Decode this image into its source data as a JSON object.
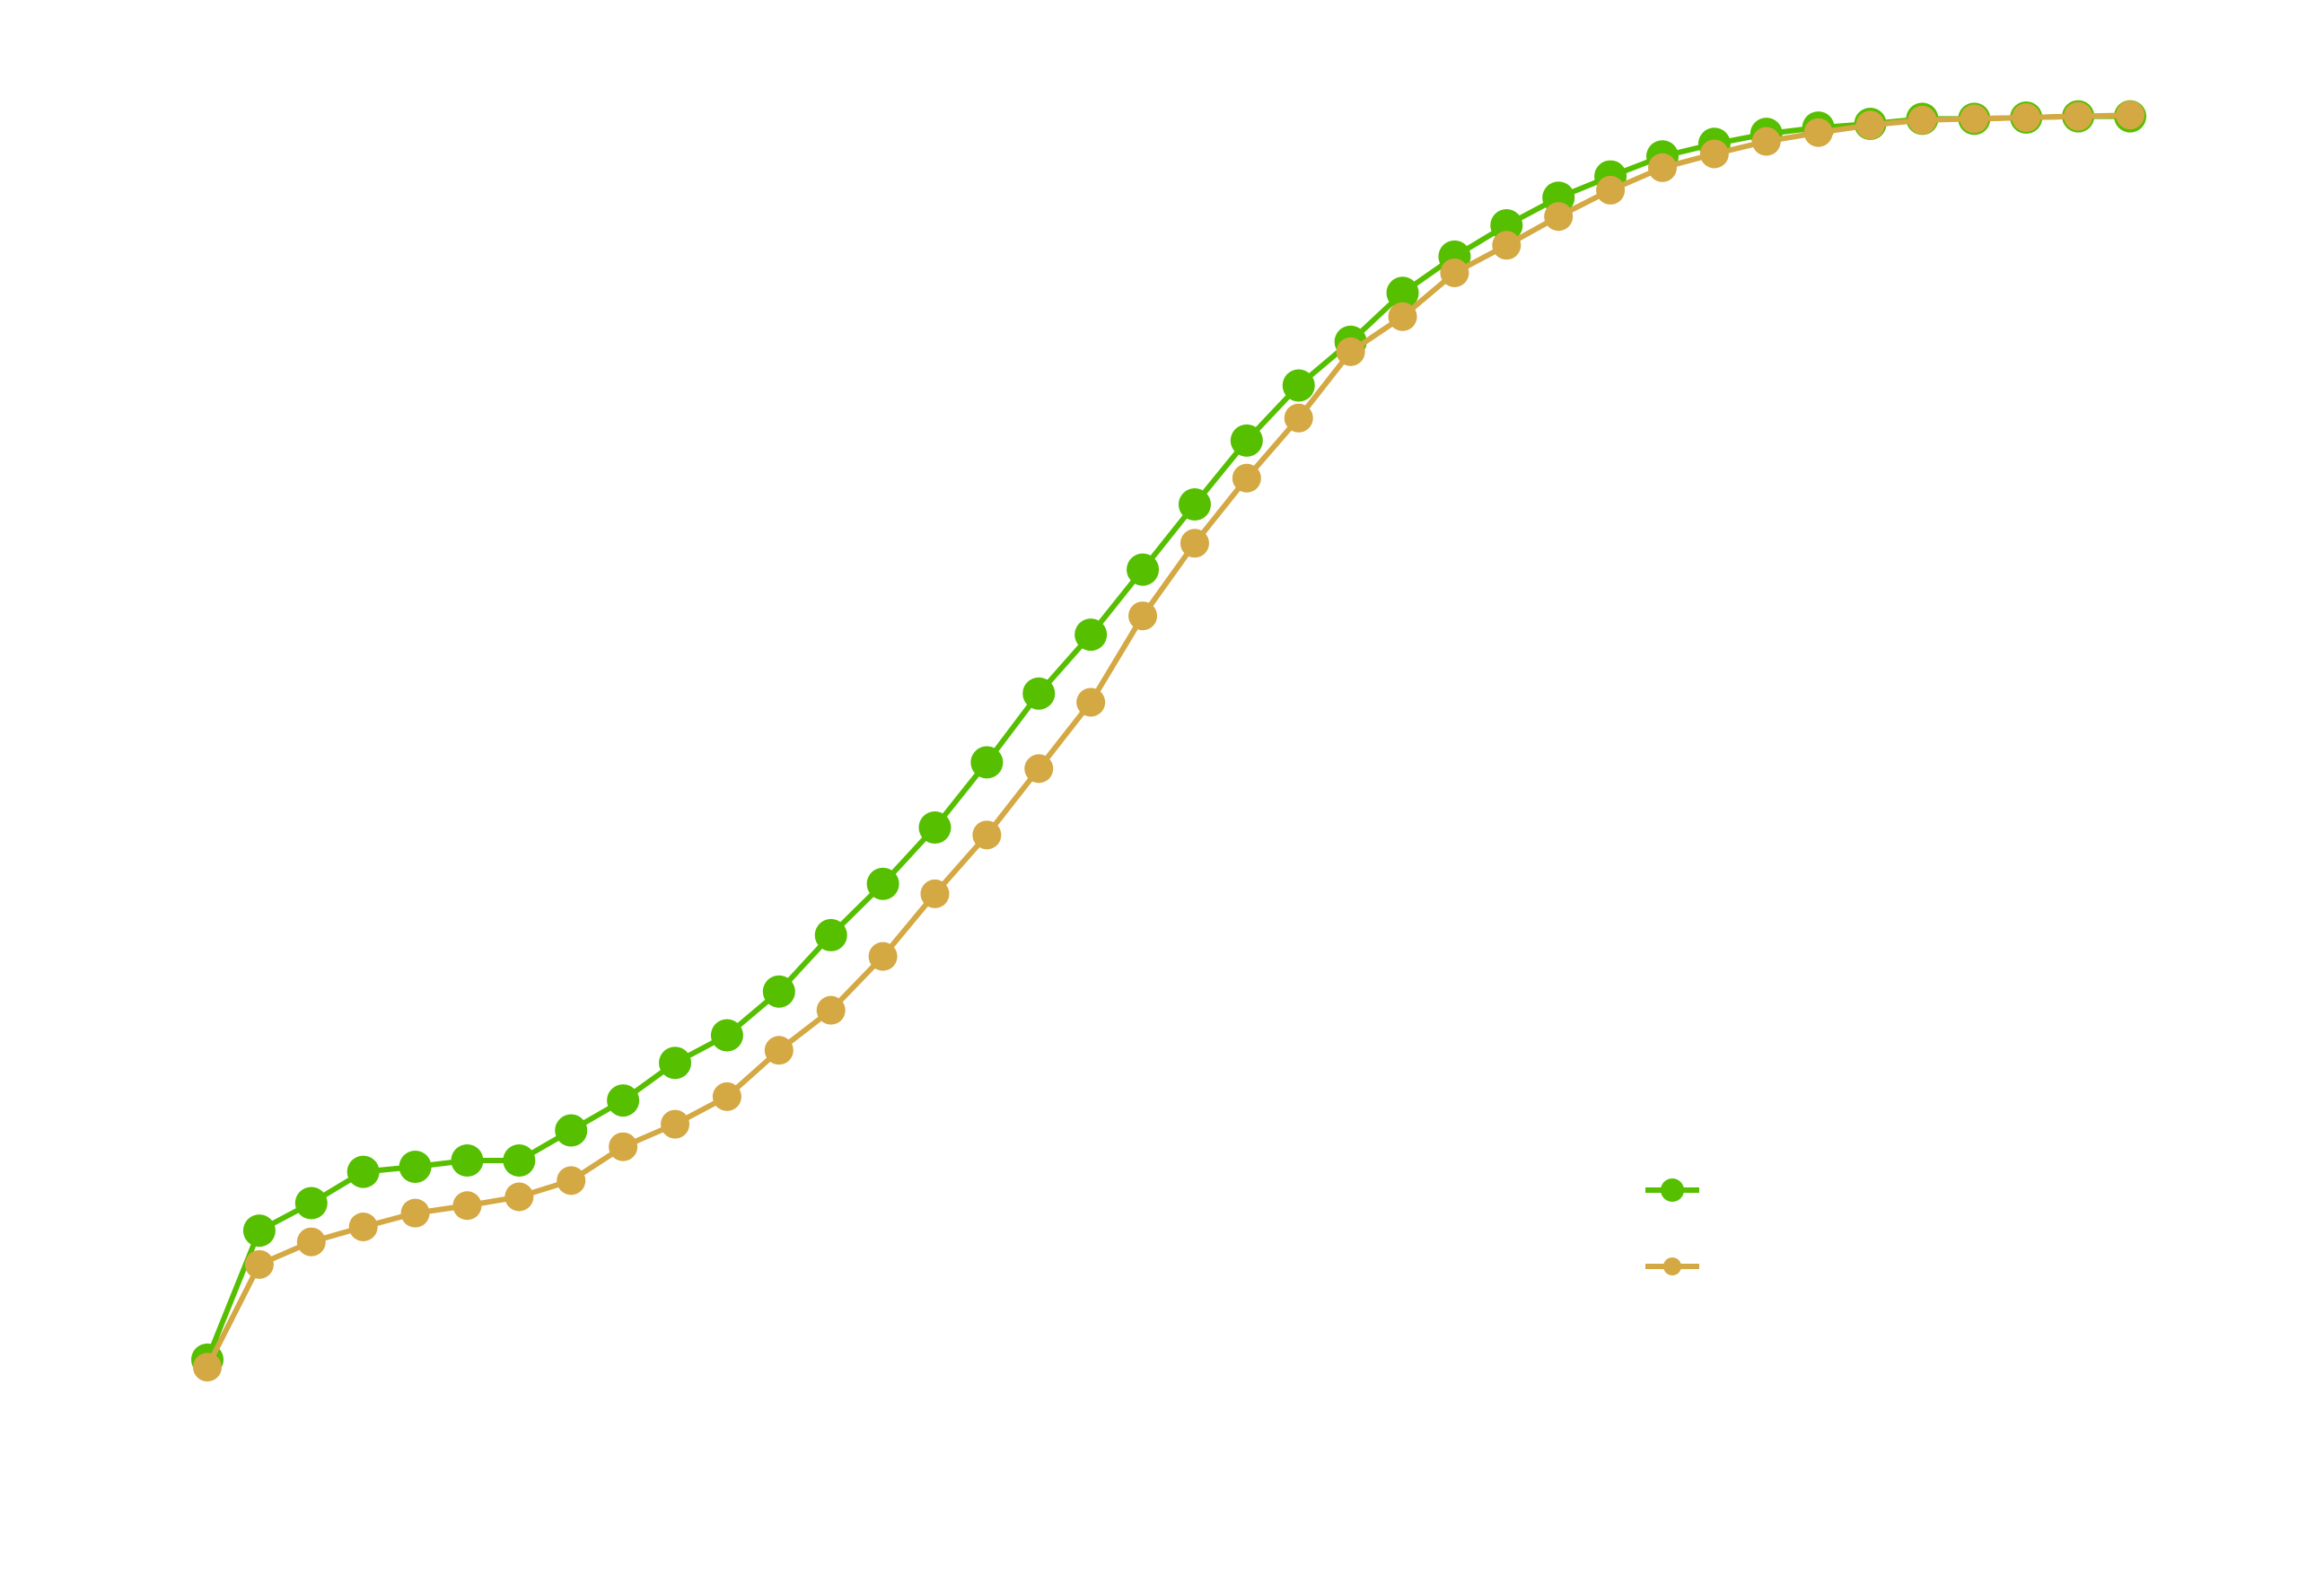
{
  "chart_data": {
    "type": "line",
    "categories": [
      null,
      null,
      null,
      null,
      null,
      null,
      null,
      null,
      null,
      null,
      null,
      null,
      null,
      null,
      null,
      null,
      null,
      null,
      null,
      null,
      null,
      null,
      null,
      null,
      null,
      null,
      null,
      null,
      null,
      null,
      null,
      null,
      null,
      null,
      null,
      null,
      null,
      null
    ],
    "series": [
      {
        "color": "#55bf00",
        "values": [
          0.8,
          11.1,
          13.3,
          15.8,
          16.2,
          16.7,
          16.7,
          19.1,
          21.5,
          24.5,
          26.7,
          30.2,
          34.7,
          38.8,
          43.3,
          48.5,
          54.0,
          58.7,
          63.9,
          69.1,
          74.2,
          78.6,
          82.1,
          86.0,
          88.9,
          91.4,
          93.6,
          95.3,
          96.9,
          97.9,
          98.7,
          99.2,
          99.5,
          99.9,
          99.9,
          100.0,
          100.1,
          100.1
        ]
      },
      {
        "color": "#d4a843",
        "values": [
          0.2,
          8.4,
          10.2,
          11.4,
          12.5,
          13.1,
          13.8,
          15.1,
          17.8,
          19.6,
          21.8,
          25.5,
          28.7,
          33.0,
          38.0,
          42.7,
          48.0,
          53.3,
          60.2,
          66.0,
          71.2,
          76.0,
          81.3,
          84.1,
          87.6,
          89.8,
          92.1,
          94.2,
          96.0,
          97.1,
          98.1,
          98.8,
          99.4,
          99.8,
          99.9,
          100.0,
          100.1,
          100.2
        ]
      }
    ],
    "ylim": [
      0,
      100
    ]
  }
}
